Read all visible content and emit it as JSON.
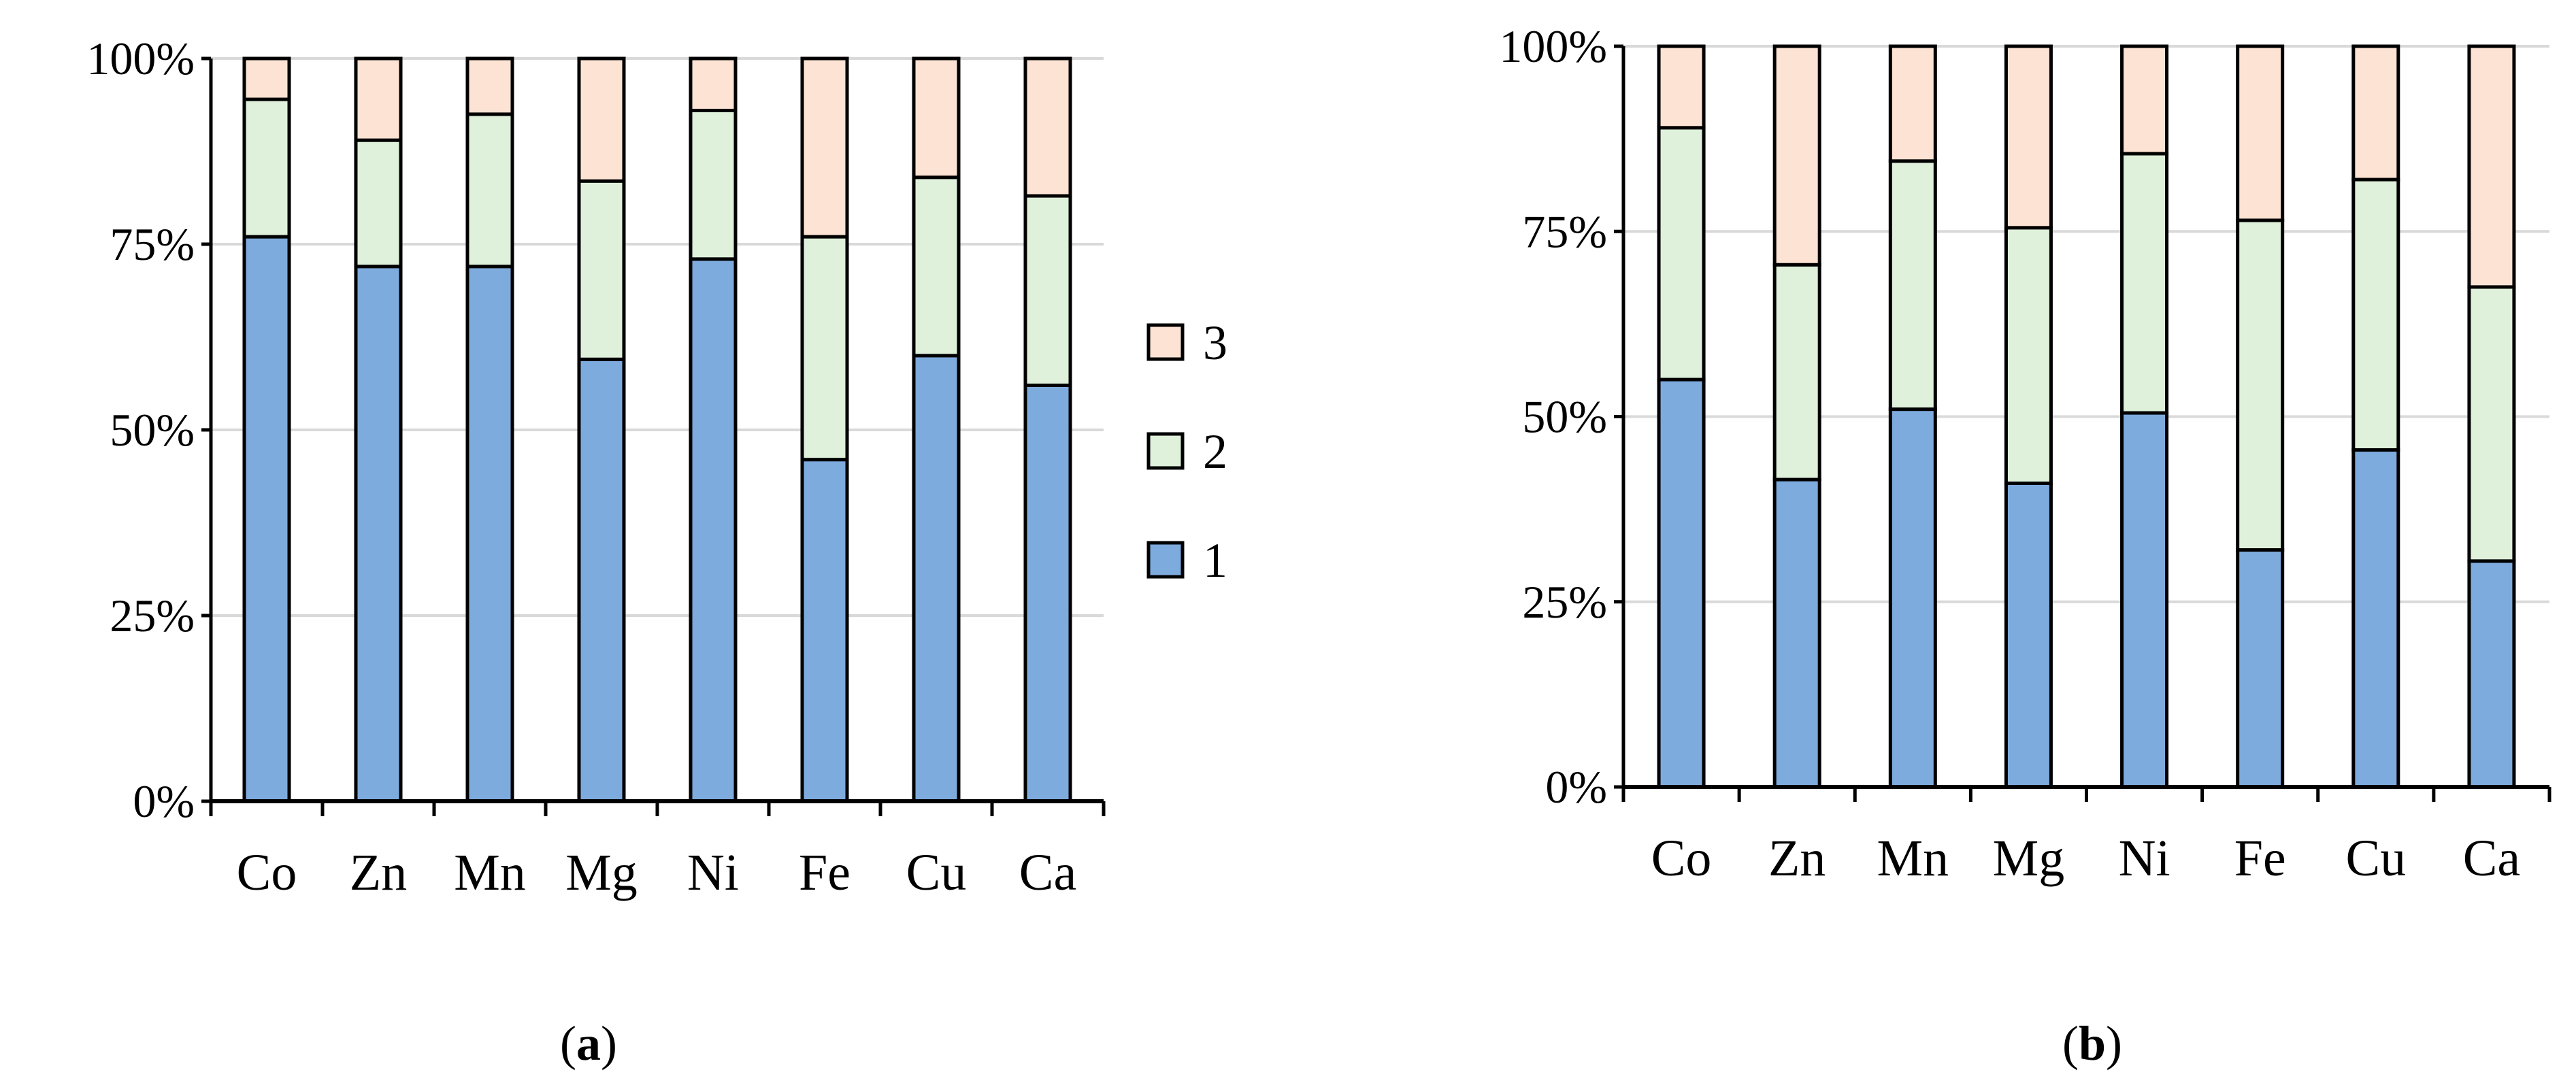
{
  "colors": {
    "series_1": "#7eabde",
    "series_2": "#dff0db",
    "series_3": "#fde3d4",
    "bar_stroke": "#000000",
    "gridline": "#d9d9d9",
    "axis": "#000000"
  },
  "chart_data": [
    {
      "type": "bar",
      "stacked": true,
      "panel": "a",
      "caption": {
        "open": "(",
        "letter": "a",
        "close": ")"
      },
      "categories": [
        "Co",
        "Zn",
        "Mn",
        "Mg",
        "Ni",
        "Fe",
        "Cu",
        "Ca"
      ],
      "series": [
        {
          "name": "1",
          "values": [
            76,
            72,
            72,
            59.5,
            73,
            46,
            60,
            56
          ]
        },
        {
          "name": "2",
          "values": [
            18.5,
            17,
            20.5,
            24,
            20,
            30,
            24,
            25.5
          ]
        },
        {
          "name": "3",
          "values": [
            5.5,
            11,
            7.5,
            16.5,
            7,
            24,
            16,
            18.5
          ]
        }
      ],
      "ylim": [
        0,
        100
      ],
      "yticks": [
        0,
        25,
        50,
        75,
        100
      ],
      "ytick_labels": [
        "0%",
        "25%",
        "50%",
        "75%",
        "100%"
      ],
      "grid": true,
      "legend": {
        "placement": "right",
        "order": [
          "3",
          "2",
          "1"
        ]
      },
      "title": "",
      "xlabel": "",
      "ylabel": ""
    },
    {
      "type": "bar",
      "stacked": true,
      "panel": "b",
      "caption": {
        "open": "(",
        "letter": "b",
        "close": ")"
      },
      "categories": [
        "Co",
        "Zn",
        "Mn",
        "Mg",
        "Ni",
        "Fe",
        "Cu",
        "Ca"
      ],
      "series": [
        {
          "name": "1",
          "values": [
            55,
            41.5,
            51,
            41,
            50.5,
            32,
            45.5,
            30.5
          ]
        },
        {
          "name": "2",
          "values": [
            34,
            29,
            33.5,
            34.5,
            35,
            44.5,
            36.5,
            37
          ]
        },
        {
          "name": "3",
          "values": [
            11,
            29.5,
            15.5,
            24.5,
            14.5,
            23.5,
            18,
            32.5
          ]
        }
      ],
      "ylim": [
        0,
        100
      ],
      "yticks": [
        0,
        25,
        50,
        75,
        100
      ],
      "ytick_labels": [
        "0%",
        "25%",
        "50%",
        "75%",
        "100%"
      ],
      "grid": true,
      "legend": null,
      "title": "",
      "xlabel": "",
      "ylabel": ""
    }
  ]
}
